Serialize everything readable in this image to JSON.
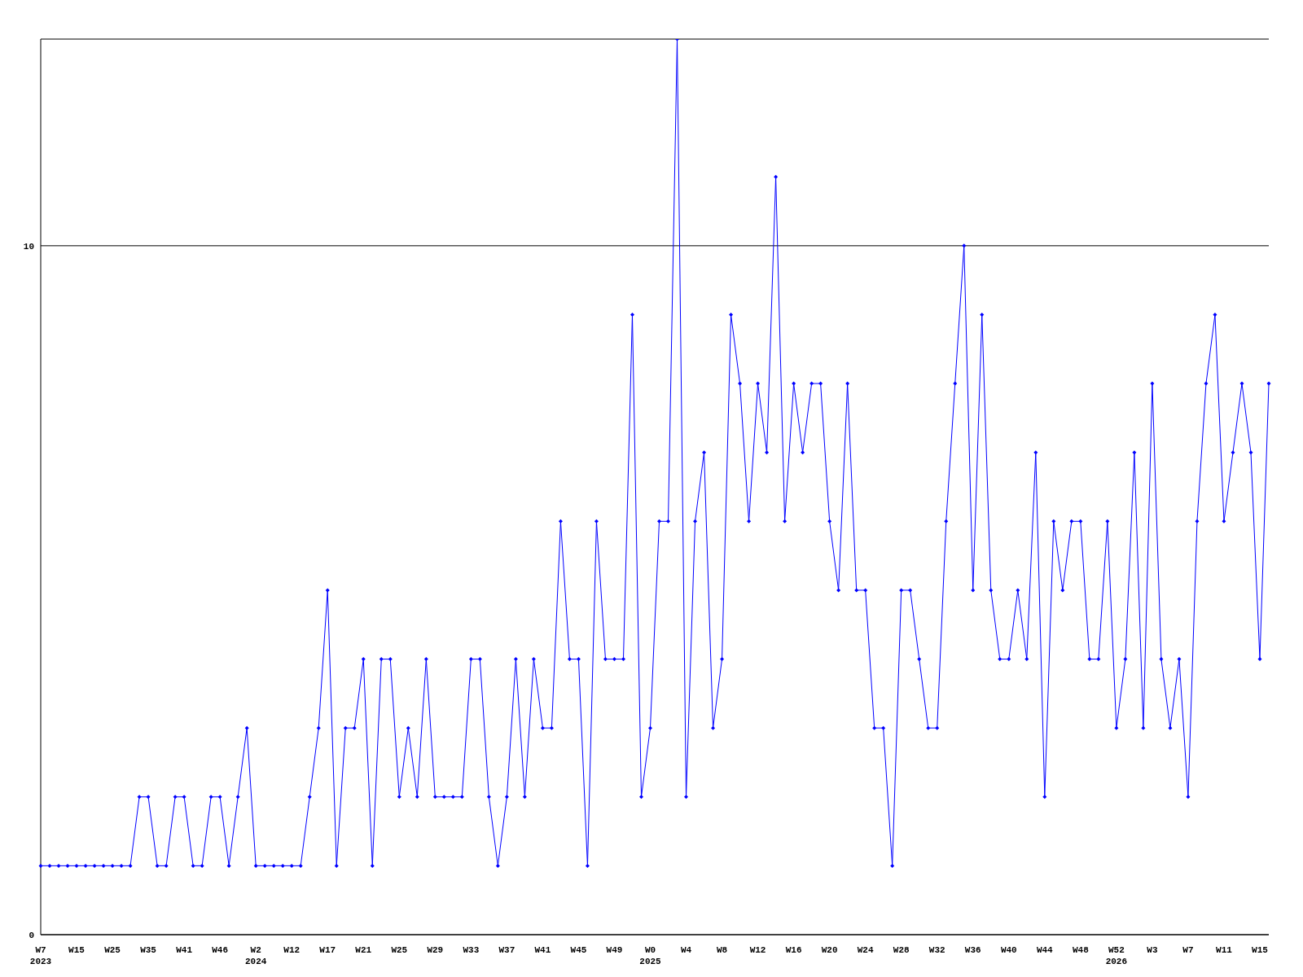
{
  "chart_data": {
    "type": "line",
    "categories": [
      "W7 2023",
      null,
      null,
      null,
      "W15",
      null,
      null,
      null,
      "W25",
      null,
      null,
      null,
      "W35",
      null,
      null,
      null,
      "W41",
      null,
      null,
      null,
      "W46",
      null,
      null,
      null,
      "W2 2024",
      null,
      null,
      null,
      "W12",
      null,
      null,
      null,
      "W17",
      null,
      null,
      null,
      "W21",
      null,
      null,
      null,
      "W25",
      null,
      null,
      null,
      "W29",
      null,
      null,
      null,
      "W33",
      null,
      null,
      null,
      "W37",
      null,
      null,
      null,
      "W41",
      null,
      null,
      null,
      "W45",
      null,
      null,
      null,
      "W49",
      null,
      null,
      null,
      "W0 2025",
      null,
      null,
      null,
      "W4",
      null,
      null,
      null,
      "W8",
      null,
      null,
      null,
      "W12",
      null,
      null,
      null,
      "W16",
      null,
      null,
      null,
      "W20",
      null,
      null,
      null,
      "W24",
      null,
      null,
      null,
      "W28",
      null,
      null,
      null,
      "W32",
      null,
      null,
      null,
      "W36",
      null,
      null,
      null,
      "W40",
      null,
      null,
      null,
      "W44",
      null,
      null,
      null,
      "W48",
      null,
      null,
      null,
      "W52 2026",
      null,
      null,
      null,
      "W3",
      null,
      null,
      null,
      "W7",
      null,
      null,
      null,
      "W11",
      null,
      null,
      null,
      "W15",
      null
    ],
    "series": [
      {
        "color": "#0000ff",
        "values": [
          1,
          1,
          1,
          1,
          1,
          1,
          1,
          1,
          1,
          1,
          1,
          2,
          2,
          1,
          1,
          2,
          2,
          1,
          1,
          2,
          2,
          1,
          2,
          3,
          1,
          1,
          1,
          1,
          1,
          1,
          2,
          3,
          5,
          1,
          3,
          3,
          4,
          1,
          4,
          4,
          2,
          3,
          2,
          4,
          2,
          2,
          2,
          2,
          4,
          4,
          2,
          1,
          2,
          4,
          2,
          4,
          3,
          3,
          6,
          4,
          4,
          1,
          6,
          4,
          4,
          4,
          9,
          2,
          3,
          6,
          6,
          13,
          2,
          6,
          7,
          3,
          4,
          9,
          8,
          6,
          8,
          7,
          11,
          6,
          8,
          7,
          8,
          8,
          6,
          5,
          8,
          5,
          5,
          3,
          3,
          1,
          5,
          5,
          4,
          3,
          3,
          6,
          8,
          10,
          5,
          9,
          5,
          4,
          4,
          5,
          4,
          7,
          2,
          6,
          5,
          6,
          6,
          4,
          4,
          6,
          3,
          4,
          7,
          3,
          8,
          4,
          3,
          4,
          2,
          6,
          8,
          9,
          6,
          7,
          8,
          7,
          4,
          8
        ]
      }
    ],
    "ylim": [
      0,
      13
    ],
    "yticks": [
      0,
      10
    ],
    "grid": "y",
    "marker": "diamond",
    "legend": false
  }
}
